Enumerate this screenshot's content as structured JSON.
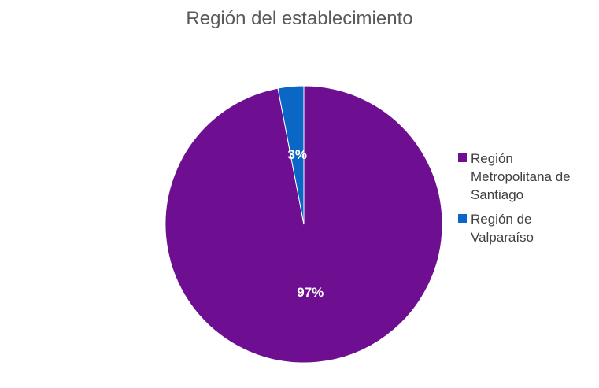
{
  "chart_data": {
    "type": "pie",
    "title": "Región del establecimiento",
    "categories": [
      "Región Metropolitana de Santiago",
      "Región de Valparaíso"
    ],
    "values": [
      97,
      3
    ],
    "data_labels": [
      "97%",
      "3%"
    ],
    "colors": [
      "#6e0f91",
      "#0b67c6"
    ],
    "legend_position": "right"
  }
}
